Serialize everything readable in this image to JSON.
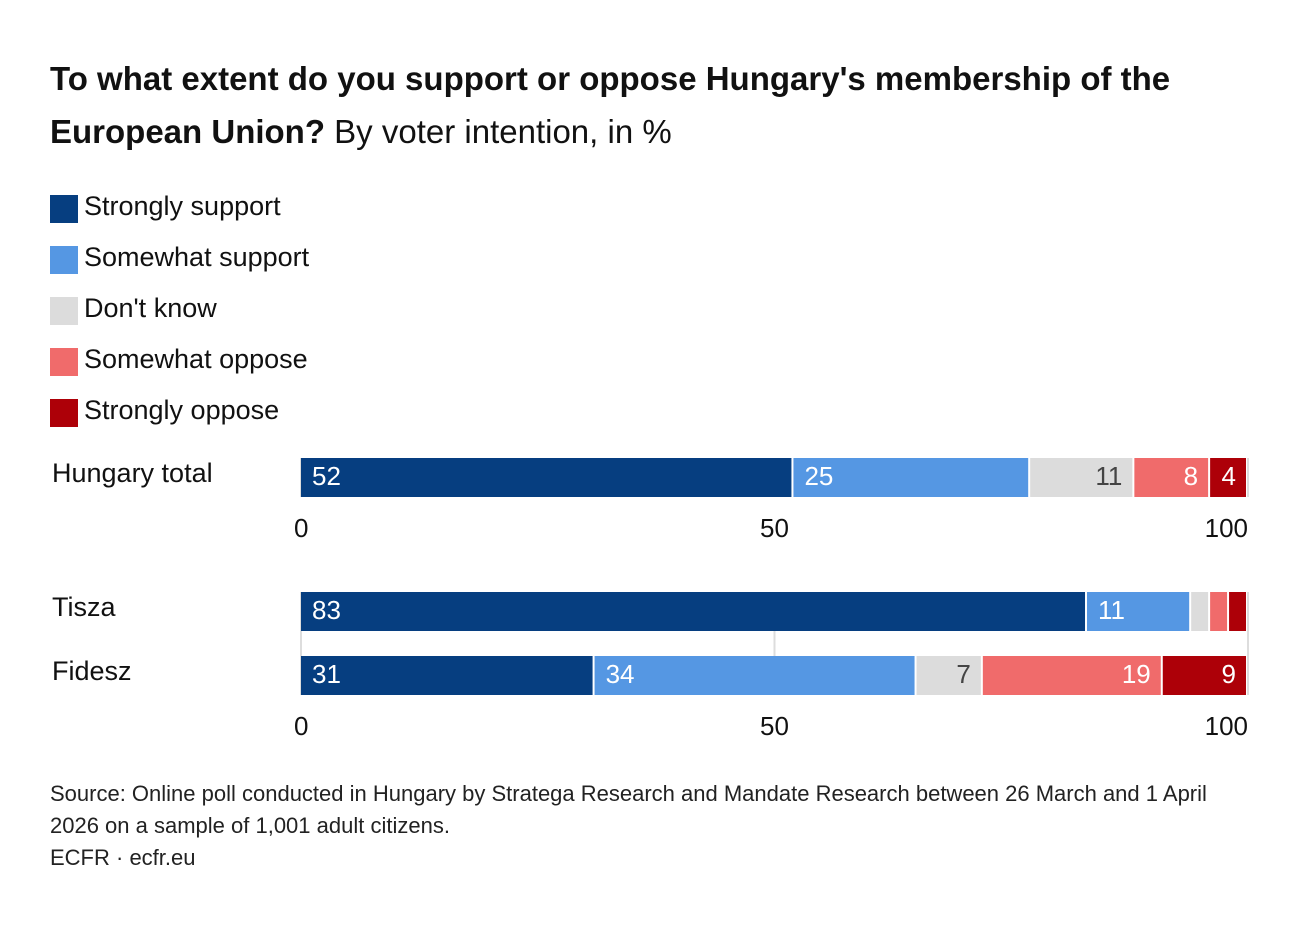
{
  "title": "To what extent do you support or oppose Hungary's membership of the European Union?",
  "subtitle": "By voter intention, in %",
  "source": "Source: Online poll conducted in Hungary by Stratega Research and Mandate Research between 26 March and 1 April 2026 on a sample of 1,001 adult citizens.",
  "credit": "ECFR · ecfr.eu",
  "chart_data": [
    {
      "type": "stacked-bar-horizontal",
      "categories": [
        "Hungary total"
      ],
      "series": [
        {
          "name": "Strongly support",
          "color": "#063e80",
          "values": [
            52
          ]
        },
        {
          "name": "Somewhat support",
          "color": "#5597e3",
          "values": [
            25
          ]
        },
        {
          "name": "Don't know",
          "color": "#dcdcdc",
          "values": [
            11
          ]
        },
        {
          "name": "Somewhat oppose",
          "color": "#f06b6b",
          "values": [
            8
          ]
        },
        {
          "name": "Strongly oppose",
          "color": "#ad0008",
          "values": [
            4
          ]
        }
      ],
      "xlim": [
        0,
        100
      ],
      "xticks": [
        0,
        50,
        100
      ],
      "grid": true,
      "legend": "top-left"
    },
    {
      "type": "stacked-bar-horizontal",
      "categories": [
        "Tisza",
        "Fidesz"
      ],
      "series": [
        {
          "name": "Strongly support",
          "color": "#063e80",
          "values": [
            83,
            31
          ]
        },
        {
          "name": "Somewhat support",
          "color": "#5597e3",
          "values": [
            11,
            34
          ]
        },
        {
          "name": "Don't know",
          "color": "#dcdcdc",
          "values": [
            2,
            7
          ]
        },
        {
          "name": "Somewhat oppose",
          "color": "#f06b6b",
          "values": [
            2,
            19
          ]
        },
        {
          "name": "Strongly oppose",
          "color": "#ad0008",
          "values": [
            2,
            9
          ]
        }
      ],
      "xlim": [
        0,
        100
      ],
      "xticks": [
        0,
        50,
        100
      ],
      "grid": true
    }
  ]
}
